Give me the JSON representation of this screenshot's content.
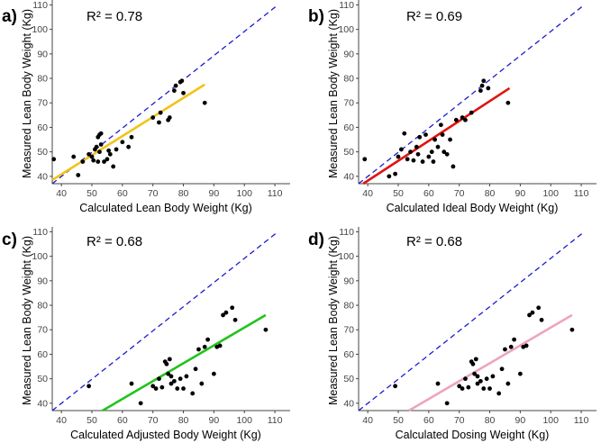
{
  "chart_data": [
    {
      "type": "scatter",
      "panel": "a)",
      "annotation": "R² = 0.78",
      "xlabel": "Calculated Lean Body Weight (Kg)",
      "ylabel": "Measured Lean Body Weight (Kg)",
      "xlim": [
        37,
        115
      ],
      "ylim": [
        37,
        112
      ],
      "xticks": [
        "40",
        "50",
        "60",
        "70",
        "80",
        "90",
        "100",
        "110"
      ],
      "yticks": [
        "40",
        "50",
        "60",
        "70",
        "80",
        "90",
        "100",
        "110"
      ],
      "fit_color": "#f2c318",
      "fit_line": [
        [
          37,
          38.5
        ],
        [
          87,
          77.5
        ]
      ],
      "identity_line": [
        [
          37,
          37
        ],
        [
          111,
          110
        ]
      ],
      "points": [
        [
          37.5,
          47
        ],
        [
          44,
          48
        ],
        [
          45.5,
          40.5
        ],
        [
          47,
          46
        ],
        [
          49,
          49
        ],
        [
          50,
          48
        ],
        [
          50.5,
          46.5
        ],
        [
          51,
          51
        ],
        [
          51.5,
          52
        ],
        [
          52,
          46
        ],
        [
          52.5,
          50
        ],
        [
          53,
          53
        ],
        [
          52,
          56
        ],
        [
          52.5,
          57
        ],
        [
          53,
          57.5
        ],
        [
          54,
          46
        ],
        [
          55,
          47
        ],
        [
          55.5,
          50.5
        ],
        [
          56,
          49
        ],
        [
          57,
          44
        ],
        [
          58,
          51
        ],
        [
          60,
          54
        ],
        [
          62,
          52
        ],
        [
          63,
          56
        ],
        [
          70,
          64
        ],
        [
          72,
          62
        ],
        [
          72.5,
          66
        ],
        [
          75,
          63
        ],
        [
          75.5,
          64
        ],
        [
          77,
          75
        ],
        [
          77.5,
          77
        ],
        [
          79,
          78.5
        ],
        [
          79.5,
          79
        ],
        [
          80,
          74
        ],
        [
          87,
          70
        ]
      ]
    },
    {
      "type": "scatter",
      "panel": "b)",
      "annotation": "R² = 0.69",
      "xlabel": "Calculated Ideal Body Weight (Kg)",
      "ylabel": "Measured Lean Body Weight (Kg)",
      "xlim": [
        37,
        115
      ],
      "ylim": [
        37,
        112
      ],
      "xticks": [
        "40",
        "50",
        "60",
        "70",
        "80",
        "90",
        "100",
        "110"
      ],
      "yticks": [
        "40",
        "50",
        "60",
        "70",
        "80",
        "90",
        "100",
        "110"
      ],
      "fit_color": "#e0140f",
      "fit_line": [
        [
          38.5,
          37
        ],
        [
          86.5,
          76
        ]
      ],
      "identity_line": [
        [
          37,
          37
        ],
        [
          111,
          110
        ]
      ],
      "points": [
        [
          39,
          47
        ],
        [
          47,
          40
        ],
        [
          49,
          41
        ],
        [
          50,
          48
        ],
        [
          51,
          51
        ],
        [
          52,
          57.5
        ],
        [
          53,
          47
        ],
        [
          54,
          50
        ],
        [
          55,
          46.5
        ],
        [
          56,
          52
        ],
        [
          56.5,
          49
        ],
        [
          57,
          56
        ],
        [
          58,
          46
        ],
        [
          59,
          57
        ],
        [
          60,
          48
        ],
        [
          61,
          50
        ],
        [
          61.5,
          46
        ],
        [
          62,
          55
        ],
        [
          63,
          52
        ],
        [
          64,
          61
        ],
        [
          64.5,
          57
        ],
        [
          65,
          50
        ],
        [
          66,
          49
        ],
        [
          67,
          55
        ],
        [
          68,
          44
        ],
        [
          69,
          63
        ],
        [
          71,
          64
        ],
        [
          72,
          63
        ],
        [
          74,
          66
        ],
        [
          77,
          75
        ],
        [
          77.5,
          77
        ],
        [
          78,
          79
        ],
        [
          79.5,
          76
        ],
        [
          86,
          70
        ]
      ]
    },
    {
      "type": "scatter",
      "panel": "c)",
      "annotation": "R² = 0.68",
      "xlabel": "Calculated Adjusted Body Weight (Kg)",
      "ylabel": "Measured Lean Body Weight (Kg)",
      "xlim": [
        37,
        115
      ],
      "ylim": [
        37,
        112
      ],
      "xticks": [
        "40",
        "50",
        "60",
        "70",
        "80",
        "90",
        "100",
        "110"
      ],
      "yticks": [
        "40",
        "50",
        "60",
        "70",
        "80",
        "90",
        "100",
        "110"
      ],
      "fit_color": "#1fc41c",
      "fit_line": [
        [
          53.5,
          37
        ],
        [
          107,
          76
        ]
      ],
      "identity_line": [
        [
          37,
          37
        ],
        [
          111,
          110
        ]
      ],
      "points": [
        [
          49,
          47
        ],
        [
          63,
          48
        ],
        [
          66,
          40
        ],
        [
          70,
          47
        ],
        [
          71,
          46
        ],
        [
          72,
          50
        ],
        [
          73,
          46.5
        ],
        [
          74,
          57
        ],
        [
          74.5,
          56
        ],
        [
          75,
          52
        ],
        [
          75.5,
          58
        ],
        [
          76,
          51
        ],
        [
          76,
          48
        ],
        [
          77,
          49
        ],
        [
          78,
          46
        ],
        [
          79,
          50
        ],
        [
          80,
          46
        ],
        [
          81,
          51
        ],
        [
          83,
          44
        ],
        [
          84,
          54
        ],
        [
          85,
          62
        ],
        [
          86,
          48
        ],
        [
          87,
          63
        ],
        [
          88,
          66
        ],
        [
          90,
          52
        ],
        [
          91,
          63
        ],
        [
          92,
          63.5
        ],
        [
          93,
          76
        ],
        [
          94,
          77
        ],
        [
          96,
          79
        ],
        [
          97,
          74
        ],
        [
          107,
          70
        ]
      ]
    },
    {
      "type": "scatter",
      "panel": "d)",
      "annotation": "R² = 0.68",
      "xlabel": "Calculated Dosing Weight (Kg)",
      "ylabel": "Measured Lean Body Weight (Kg)",
      "xlim": [
        37,
        115
      ],
      "ylim": [
        37,
        112
      ],
      "xticks": [
        "40",
        "50",
        "60",
        "70",
        "80",
        "90",
        "100",
        "110"
      ],
      "yticks": [
        "40",
        "50",
        "60",
        "70",
        "80",
        "90",
        "100",
        "110"
      ],
      "fit_color": "#eda4c0",
      "fit_line": [
        [
          53.5,
          37
        ],
        [
          107,
          76
        ]
      ],
      "identity_line": [
        [
          37,
          37
        ],
        [
          111,
          110
        ]
      ],
      "points": [
        [
          49,
          47
        ],
        [
          63,
          48
        ],
        [
          66,
          40
        ],
        [
          70,
          47
        ],
        [
          71,
          46
        ],
        [
          72,
          50
        ],
        [
          73,
          46.5
        ],
        [
          74,
          57
        ],
        [
          74.5,
          56
        ],
        [
          75,
          52
        ],
        [
          75.5,
          58
        ],
        [
          76,
          51
        ],
        [
          76,
          48
        ],
        [
          77,
          49
        ],
        [
          78,
          46
        ],
        [
          79,
          50
        ],
        [
          80,
          46
        ],
        [
          81,
          51
        ],
        [
          83,
          44
        ],
        [
          84,
          54
        ],
        [
          85,
          62
        ],
        [
          86,
          48
        ],
        [
          87,
          63
        ],
        [
          88,
          66
        ],
        [
          90,
          52
        ],
        [
          91,
          63
        ],
        [
          92,
          63.5
        ],
        [
          93,
          76
        ],
        [
          94,
          77
        ],
        [
          96,
          79
        ],
        [
          97,
          74
        ],
        [
          107,
          70
        ]
      ]
    }
  ]
}
